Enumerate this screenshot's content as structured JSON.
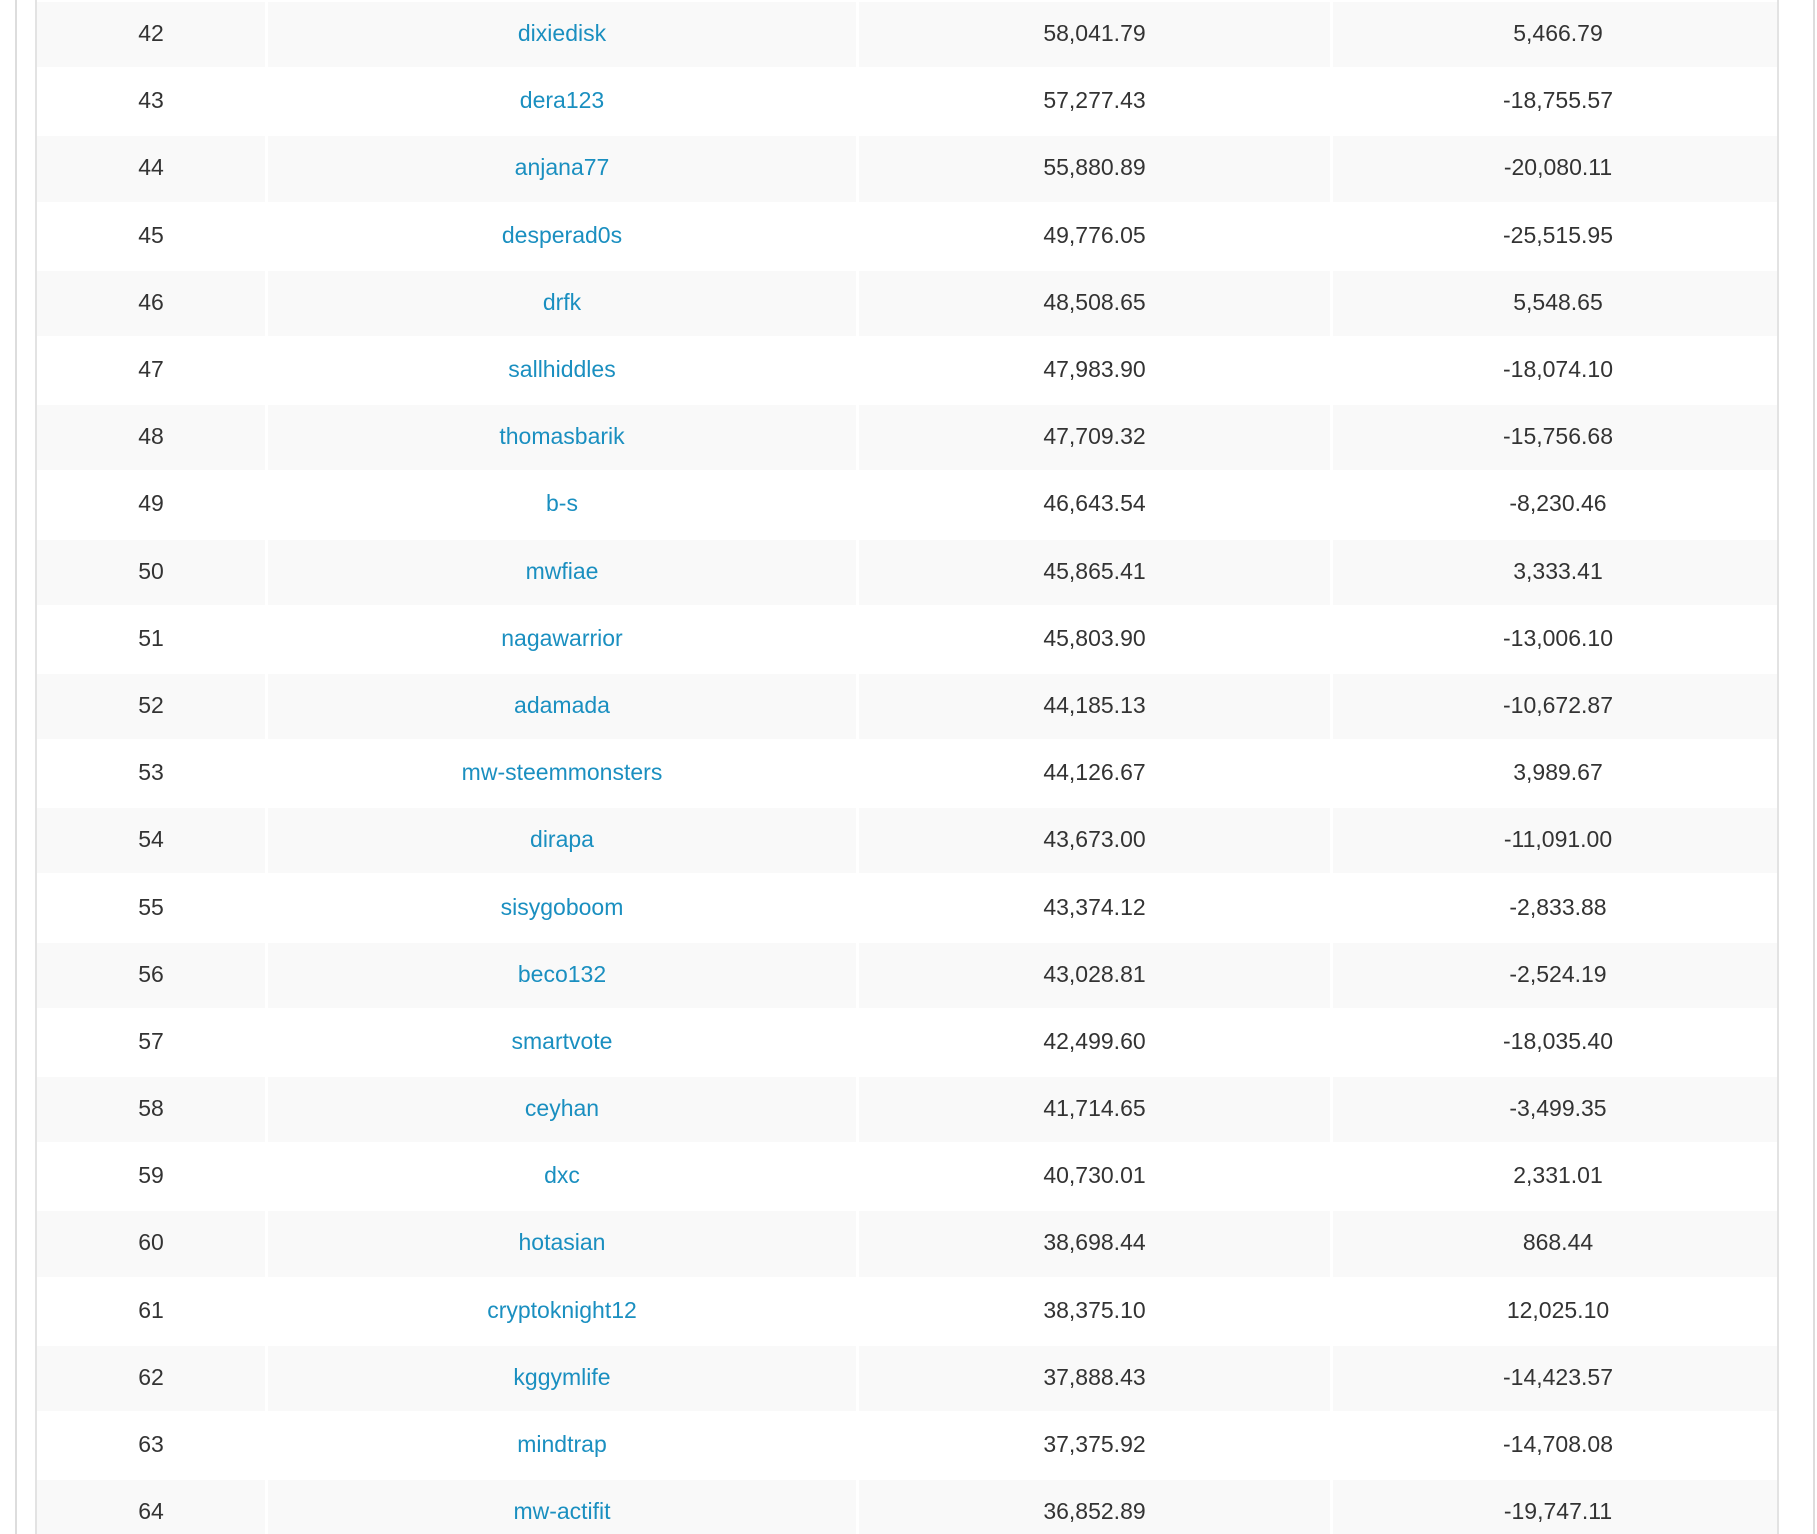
{
  "colors": {
    "link": "#1a8fc0",
    "text": "#333333",
    "stripe": "#f9f9f9"
  },
  "rows": [
    {
      "rank": "42",
      "user": "dixiedisk",
      "value": "58,041.79",
      "diff": "5,466.79"
    },
    {
      "rank": "43",
      "user": "dera123",
      "value": "57,277.43",
      "diff": "-18,755.57"
    },
    {
      "rank": "44",
      "user": "anjana77",
      "value": "55,880.89",
      "diff": "-20,080.11"
    },
    {
      "rank": "45",
      "user": "desperad0s",
      "value": "49,776.05",
      "diff": "-25,515.95"
    },
    {
      "rank": "46",
      "user": "drfk",
      "value": "48,508.65",
      "diff": "5,548.65"
    },
    {
      "rank": "47",
      "user": "sallhiddles",
      "value": "47,983.90",
      "diff": "-18,074.10"
    },
    {
      "rank": "48",
      "user": "thomasbarik",
      "value": "47,709.32",
      "diff": "-15,756.68"
    },
    {
      "rank": "49",
      "user": "b-s",
      "value": "46,643.54",
      "diff": "-8,230.46"
    },
    {
      "rank": "50",
      "user": "mwfiae",
      "value": "45,865.41",
      "diff": "3,333.41"
    },
    {
      "rank": "51",
      "user": "nagawarrior",
      "value": "45,803.90",
      "diff": "-13,006.10"
    },
    {
      "rank": "52",
      "user": "adamada",
      "value": "44,185.13",
      "diff": "-10,672.87"
    },
    {
      "rank": "53",
      "user": "mw-steemmonsters",
      "value": "44,126.67",
      "diff": "3,989.67"
    },
    {
      "rank": "54",
      "user": "dirapa",
      "value": "43,673.00",
      "diff": "-11,091.00"
    },
    {
      "rank": "55",
      "user": "sisygoboom",
      "value": "43,374.12",
      "diff": "-2,833.88"
    },
    {
      "rank": "56",
      "user": "beco132",
      "value": "43,028.81",
      "diff": "-2,524.19"
    },
    {
      "rank": "57",
      "user": "smartvote",
      "value": "42,499.60",
      "diff": "-18,035.40"
    },
    {
      "rank": "58",
      "user": "ceyhan",
      "value": "41,714.65",
      "diff": "-3,499.35"
    },
    {
      "rank": "59",
      "user": "dxc",
      "value": "40,730.01",
      "diff": "2,331.01"
    },
    {
      "rank": "60",
      "user": "hotasian",
      "value": "38,698.44",
      "diff": "868.44"
    },
    {
      "rank": "61",
      "user": "cryptoknight12",
      "value": "38,375.10",
      "diff": "12,025.10"
    },
    {
      "rank": "62",
      "user": "kggymlife",
      "value": "37,888.43",
      "diff": "-14,423.57"
    },
    {
      "rank": "63",
      "user": "mindtrap",
      "value": "37,375.92",
      "diff": "-14,708.08"
    },
    {
      "rank": "64",
      "user": "mw-actifit",
      "value": "36,852.89",
      "diff": "-19,747.11"
    }
  ]
}
